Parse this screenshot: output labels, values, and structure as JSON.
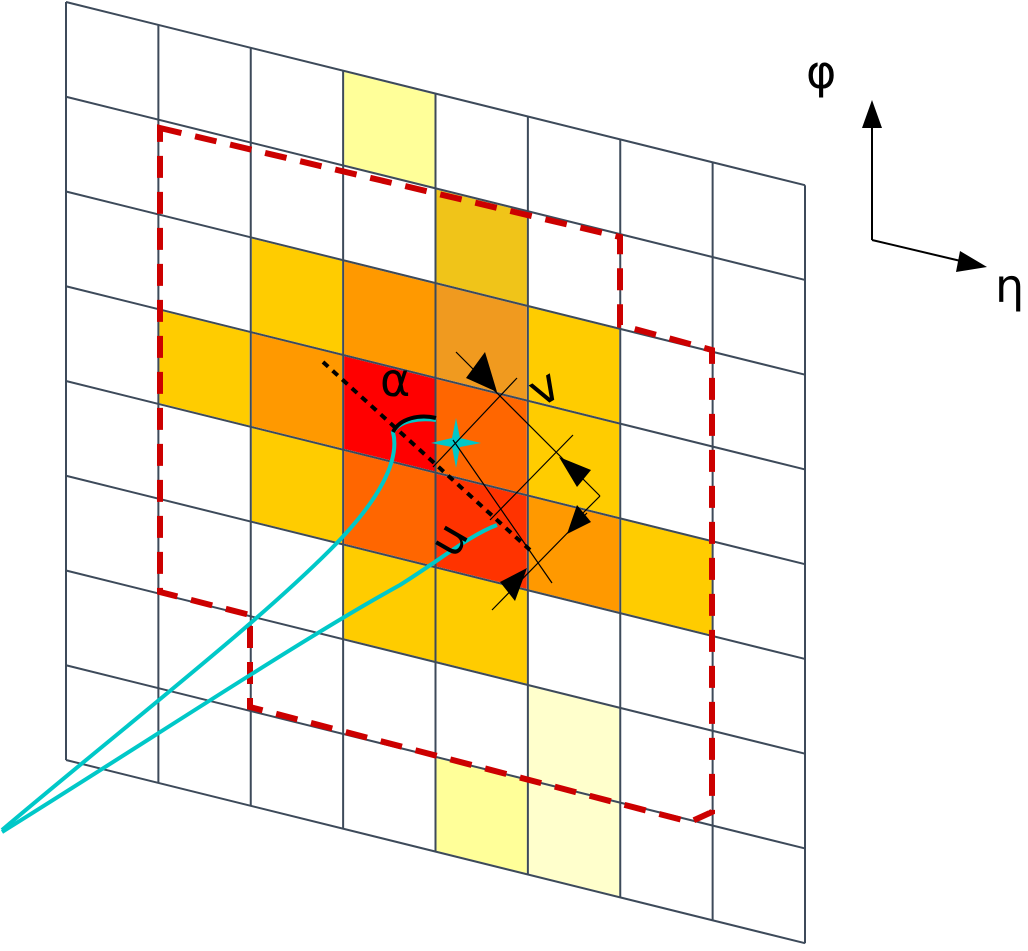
{
  "grid": {
    "columns": 8,
    "rows": 8,
    "line_color": "#3d4a5a"
  },
  "cells": [
    {
      "col": 3,
      "row": 0,
      "color": "#FFFF99"
    },
    {
      "col": 4,
      "row": 1,
      "color": "#F0C419"
    },
    {
      "col": 2,
      "row": 2,
      "color": "#FFCC00"
    },
    {
      "col": 3,
      "row": 2,
      "color": "#FF9900"
    },
    {
      "col": 4,
      "row": 2,
      "color": "#F09A1F"
    },
    {
      "col": 5,
      "row": 2,
      "color": "#FFCC00"
    },
    {
      "col": 1,
      "row": 3,
      "color": "#FFCC00"
    },
    {
      "col": 2,
      "row": 3,
      "color": "#FF9900"
    },
    {
      "col": 3,
      "row": 3,
      "color": "#FF0000"
    },
    {
      "col": 4,
      "row": 3,
      "color": "#FF6600"
    },
    {
      "col": 5,
      "row": 3,
      "color": "#FFCC00"
    },
    {
      "col": 2,
      "row": 4,
      "color": "#FFCC00"
    },
    {
      "col": 3,
      "row": 4,
      "color": "#FF6600"
    },
    {
      "col": 4,
      "row": 4,
      "color": "#FF3300"
    },
    {
      "col": 5,
      "row": 4,
      "color": "#FF9900"
    },
    {
      "col": 6,
      "row": 4,
      "color": "#FFCC00"
    },
    {
      "col": 3,
      "row": 5,
      "color": "#FFCC00"
    },
    {
      "col": 4,
      "row": 5,
      "color": "#FFCC00"
    },
    {
      "col": 5,
      "row": 6,
      "color": "#FFFFCC"
    },
    {
      "col": 4,
      "row": 7,
      "color": "#FFFF99"
    },
    {
      "col": 5,
      "row": 7,
      "color": "#FFFFCC"
    }
  ],
  "colors": {
    "window_outline": "#CC0000",
    "track": "#00C8C8",
    "annotation": "#000000"
  },
  "labels": {
    "phi": "φ",
    "eta": "η",
    "alpha": "α",
    "v": "v",
    "u": "u"
  }
}
